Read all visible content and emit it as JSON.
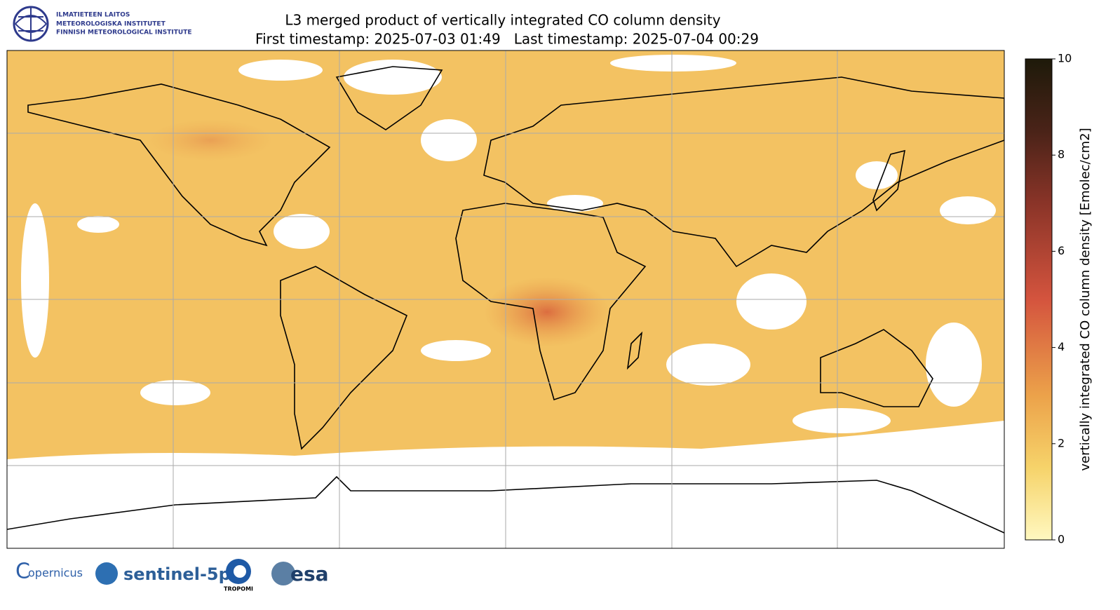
{
  "header": {
    "title": "L3 merged product of vertically integrated CO column density",
    "subtitle": "First timestamp: 2025-07-03 01:49   Last timestamp: 2025-07-04 00:29"
  },
  "institute": {
    "lines": [
      "ILMATIETEEN LAITOS",
      "METEOROLOGISKA INSTITUTET",
      "FINNISH METEOROLOGICAL INSTITUTE"
    ]
  },
  "colorbar": {
    "label": "vertically integrated CO column density [Emolec/cm2]",
    "lim": [
      0,
      10
    ],
    "ticks": [
      0,
      2,
      4,
      6,
      8,
      10
    ]
  },
  "footer": {
    "logos": [
      "opernicus",
      "sentinel-5p",
      "TROPOMI",
      "esa"
    ]
  }
}
